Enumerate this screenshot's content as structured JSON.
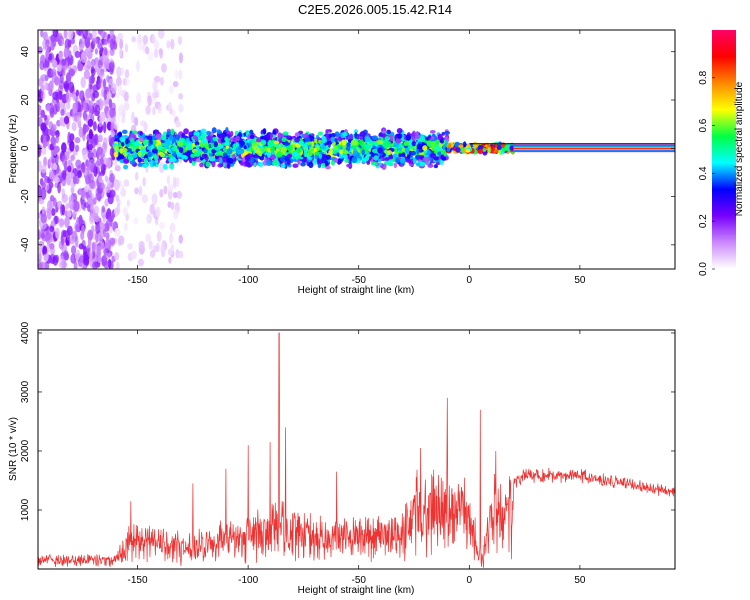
{
  "title": "C2E5.2026.005.15.42.R14",
  "chart_data": [
    {
      "type": "heatmap",
      "xlabel": "Height of straight line (km)",
      "ylabel": "Frequency (Hz)",
      "xlim": [
        -195,
        93
      ],
      "ylim": [
        -50,
        49
      ],
      "x_ticks": [
        -150,
        -100,
        -50,
        0,
        50
      ],
      "y_ticks": [
        -40,
        -20,
        0,
        20,
        40
      ],
      "colorbar": {
        "label": "Normalized spectral amplitude",
        "range": [
          0,
          1
        ],
        "ticks": [
          0.0,
          0.2,
          0.4,
          0.6,
          0.8
        ],
        "colors": [
          "#ffffff",
          "#cc88ff",
          "#7700ff",
          "#0000ff",
          "#00ffff",
          "#00ff44",
          "#ffff00",
          "#ff8800",
          "#ff0000",
          "#ff0066"
        ]
      },
      "regions": [
        {
          "x_range": [
            -195,
            -160
          ],
          "freq_spread": 49,
          "amplitude": 0.15
        },
        {
          "x_range": [
            -160,
            -130
          ],
          "freq_spread": 49,
          "amplitude": 0.05
        },
        {
          "x_range": [
            -160,
            -10
          ],
          "freq_spread": 8,
          "amplitude": 0.35
        },
        {
          "x_range": [
            -10,
            20
          ],
          "freq_spread": 2,
          "amplitude": 0.65
        },
        {
          "x_range": [
            20,
            93
          ],
          "freq_spread": 1,
          "amplitude": 0.9
        }
      ]
    },
    {
      "type": "line",
      "xlabel": "Height of straight line (km)",
      "ylabel": "SNR (10 * v/v)",
      "xlim": [
        -195,
        93
      ],
      "ylim": [
        0,
        4050
      ],
      "x_ticks": [
        -150,
        -100,
        -50,
        0,
        50
      ],
      "y_ticks": [
        1000,
        2000,
        3000,
        4000
      ],
      "color": "#ee3333",
      "envelope": [
        {
          "x": -195,
          "y": 200
        },
        {
          "x": -160,
          "y": 200
        },
        {
          "x": -155,
          "y": 700
        },
        {
          "x": -130,
          "y": 500
        },
        {
          "x": -100,
          "y": 750
        },
        {
          "x": -88,
          "y": 950
        },
        {
          "x": -60,
          "y": 700
        },
        {
          "x": -30,
          "y": 800
        },
        {
          "x": -25,
          "y": 1300
        },
        {
          "x": -10,
          "y": 1500
        },
        {
          "x": 0,
          "y": 1300
        },
        {
          "x": 5,
          "y": 500
        },
        {
          "x": 10,
          "y": 1200
        },
        {
          "x": 25,
          "y": 1650
        },
        {
          "x": 50,
          "y": 1650
        },
        {
          "x": 70,
          "y": 1500
        },
        {
          "x": 93,
          "y": 1350
        }
      ],
      "spikes": [
        {
          "x": -153,
          "y": 1150
        },
        {
          "x": -125,
          "y": 1450
        },
        {
          "x": -110,
          "y": 1700
        },
        {
          "x": -100,
          "y": 2100
        },
        {
          "x": -90,
          "y": 2150
        },
        {
          "x": -86,
          "y": 4000
        },
        {
          "x": -83,
          "y": 2400
        },
        {
          "x": -60,
          "y": 1650
        },
        {
          "x": -22,
          "y": 2050
        },
        {
          "x": -10,
          "y": 2900
        },
        {
          "x": 5,
          "y": 2700
        },
        {
          "x": 12,
          "y": 2000
        }
      ]
    }
  ]
}
